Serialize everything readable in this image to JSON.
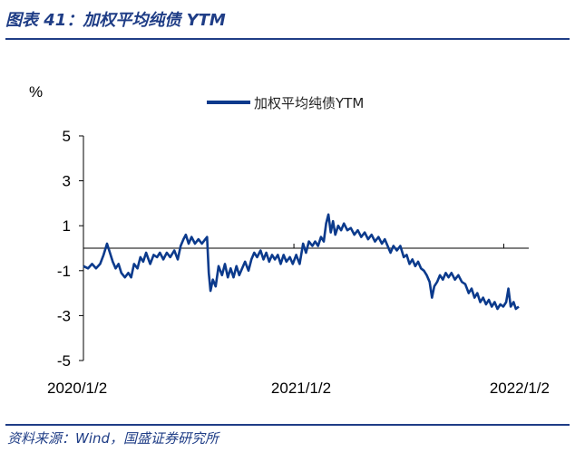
{
  "header": {
    "title": "图表 41：加权平均纯债 YTM"
  },
  "footer": {
    "source": "资料来源：Wind，国盛证券研究所"
  },
  "chart_data": {
    "type": "line",
    "title": "",
    "ylabel": "%",
    "ylim": [
      -5,
      5
    ],
    "yticks": [
      "5",
      "3",
      "1",
      "-1",
      "-3",
      "-5"
    ],
    "xlim": [
      "2020-01-02",
      "2022-01-28"
    ],
    "xticks": [
      "2020/1/2",
      "2021/1/2",
      "2022/1/2"
    ],
    "grid": false,
    "legend": "top-center",
    "series_color": "#0b3a8c",
    "series": [
      {
        "name": "加权平均纯债YTM",
        "points": [
          [
            "2020-01-02",
            -0.8
          ],
          [
            "2020-01-10",
            -0.9
          ],
          [
            "2020-01-17",
            -0.7
          ],
          [
            "2020-01-24",
            -0.9
          ],
          [
            "2020-01-31",
            -0.7
          ],
          [
            "2020-02-06",
            -0.3
          ],
          [
            "2020-02-12",
            0.2
          ],
          [
            "2020-02-17",
            -0.2
          ],
          [
            "2020-02-22",
            -0.6
          ],
          [
            "2020-02-27",
            -0.9
          ],
          [
            "2020-03-03",
            -0.7
          ],
          [
            "2020-03-08",
            -1.1
          ],
          [
            "2020-03-14",
            -1.3
          ],
          [
            "2020-03-20",
            -1.1
          ],
          [
            "2020-03-25",
            -1.3
          ],
          [
            "2020-03-30",
            -0.7
          ],
          [
            "2020-04-05",
            -0.9
          ],
          [
            "2020-04-10",
            -0.4
          ],
          [
            "2020-04-15",
            -0.6
          ],
          [
            "2020-04-20",
            -0.2
          ],
          [
            "2020-04-27",
            -0.7
          ],
          [
            "2020-05-03",
            -0.3
          ],
          [
            "2020-05-09",
            -0.4
          ],
          [
            "2020-05-14",
            -0.2
          ],
          [
            "2020-05-20",
            -0.5
          ],
          [
            "2020-05-26",
            -0.2
          ],
          [
            "2020-06-01",
            -0.4
          ],
          [
            "2020-06-08",
            -0.1
          ],
          [
            "2020-06-14",
            -0.5
          ],
          [
            "2020-06-19",
            0.1
          ],
          [
            "2020-06-24",
            0.4
          ],
          [
            "2020-06-28",
            0.6
          ],
          [
            "2020-07-03",
            0.2
          ],
          [
            "2020-07-08",
            0.5
          ],
          [
            "2020-07-14",
            0.2
          ],
          [
            "2020-07-20",
            0.4
          ],
          [
            "2020-07-26",
            0.2
          ],
          [
            "2020-08-01",
            0.4
          ],
          [
            "2020-08-04",
            0.5
          ],
          [
            "2020-08-07",
            -1.1
          ],
          [
            "2020-08-10",
            -1.9
          ],
          [
            "2020-08-14",
            -1.4
          ],
          [
            "2020-08-19",
            -1.7
          ],
          [
            "2020-08-24",
            -0.8
          ],
          [
            "2020-08-30",
            -1.2
          ],
          [
            "2020-09-04",
            -0.7
          ],
          [
            "2020-09-09",
            -1.3
          ],
          [
            "2020-09-14",
            -0.9
          ],
          [
            "2020-09-19",
            -1.3
          ],
          [
            "2020-09-24",
            -0.8
          ],
          [
            "2020-09-29",
            -1.2
          ],
          [
            "2020-10-04",
            -0.9
          ],
          [
            "2020-10-09",
            -0.6
          ],
          [
            "2020-10-15",
            -1.0
          ],
          [
            "2020-10-20",
            -0.5
          ],
          [
            "2020-10-25",
            -0.2
          ],
          [
            "2020-10-30",
            -0.4
          ],
          [
            "2020-11-05",
            -0.1
          ],
          [
            "2020-11-10",
            -0.5
          ],
          [
            "2020-11-15",
            -0.2
          ],
          [
            "2020-11-20",
            -0.6
          ],
          [
            "2020-11-25",
            -0.3
          ],
          [
            "2020-11-30",
            -0.5
          ],
          [
            "2020-12-05",
            -0.3
          ],
          [
            "2020-12-10",
            -0.7
          ],
          [
            "2020-12-15",
            -0.3
          ],
          [
            "2020-12-20",
            -0.6
          ],
          [
            "2020-12-26",
            -0.4
          ],
          [
            "2020-12-31",
            -0.7
          ],
          [
            "2021-01-06",
            -0.3
          ],
          [
            "2021-01-12",
            -0.7
          ],
          [
            "2021-01-18",
            0.2
          ],
          [
            "2021-01-23",
            -0.2
          ],
          [
            "2021-01-28",
            0.3
          ],
          [
            "2021-02-03",
            0.1
          ],
          [
            "2021-02-08",
            0.3
          ],
          [
            "2021-02-13",
            0.1
          ],
          [
            "2021-02-18",
            0.5
          ],
          [
            "2021-02-23",
            0.3
          ],
          [
            "2021-02-27",
            1.1
          ],
          [
            "2021-03-03",
            1.5
          ],
          [
            "2021-03-07",
            0.7
          ],
          [
            "2021-03-11",
            1.2
          ],
          [
            "2021-03-15",
            0.6
          ],
          [
            "2021-03-20",
            1.0
          ],
          [
            "2021-03-25",
            0.8
          ],
          [
            "2021-03-30",
            1.1
          ],
          [
            "2021-04-05",
            0.8
          ],
          [
            "2021-04-11",
            0.9
          ],
          [
            "2021-04-17",
            0.6
          ],
          [
            "2021-04-23",
            0.8
          ],
          [
            "2021-04-29",
            0.5
          ],
          [
            "2021-05-05",
            0.7
          ],
          [
            "2021-05-11",
            0.4
          ],
          [
            "2021-05-17",
            0.6
          ],
          [
            "2021-05-23",
            0.3
          ],
          [
            "2021-05-29",
            0.5
          ],
          [
            "2021-06-04",
            0.2
          ],
          [
            "2021-06-09",
            0.4
          ],
          [
            "2021-06-14",
            0.1
          ],
          [
            "2021-06-19",
            -0.2
          ],
          [
            "2021-06-24",
            0.1
          ],
          [
            "2021-06-30",
            -0.1
          ],
          [
            "2021-07-06",
            0.1
          ],
          [
            "2021-07-12",
            -0.4
          ],
          [
            "2021-07-17",
            -0.3
          ],
          [
            "2021-07-22",
            -0.7
          ],
          [
            "2021-07-27",
            -0.5
          ],
          [
            "2021-08-01",
            -0.8
          ],
          [
            "2021-08-06",
            -0.6
          ],
          [
            "2021-08-11",
            -0.9
          ],
          [
            "2021-08-16",
            -1.0
          ],
          [
            "2021-08-21",
            -1.2
          ],
          [
            "2021-08-26",
            -1.5
          ],
          [
            "2021-08-30",
            -2.2
          ],
          [
            "2021-09-03",
            -1.7
          ],
          [
            "2021-09-08",
            -1.5
          ],
          [
            "2021-09-13",
            -1.2
          ],
          [
            "2021-09-18",
            -1.4
          ],
          [
            "2021-09-23",
            -1.1
          ],
          [
            "2021-09-28",
            -1.3
          ],
          [
            "2021-10-03",
            -1.1
          ],
          [
            "2021-10-09",
            -1.4
          ],
          [
            "2021-10-15",
            -1.2
          ],
          [
            "2021-10-21",
            -1.5
          ],
          [
            "2021-10-27",
            -1.6
          ],
          [
            "2021-11-02",
            -2.0
          ],
          [
            "2021-11-07",
            -1.8
          ],
          [
            "2021-11-12",
            -2.2
          ],
          [
            "2021-11-17",
            -2.0
          ],
          [
            "2021-11-22",
            -2.4
          ],
          [
            "2021-11-27",
            -2.2
          ],
          [
            "2021-12-02",
            -2.5
          ],
          [
            "2021-12-07",
            -2.3
          ],
          [
            "2021-12-12",
            -2.6
          ],
          [
            "2021-12-17",
            -2.4
          ],
          [
            "2021-12-22",
            -2.7
          ],
          [
            "2021-12-27",
            -2.5
          ],
          [
            "2022-01-01",
            -2.6
          ],
          [
            "2022-01-06",
            -2.4
          ],
          [
            "2022-01-10",
            -1.8
          ],
          [
            "2022-01-14",
            -2.6
          ],
          [
            "2022-01-19",
            -2.4
          ],
          [
            "2022-01-23",
            -2.7
          ],
          [
            "2022-01-28",
            -2.6
          ]
        ]
      }
    ]
  }
}
